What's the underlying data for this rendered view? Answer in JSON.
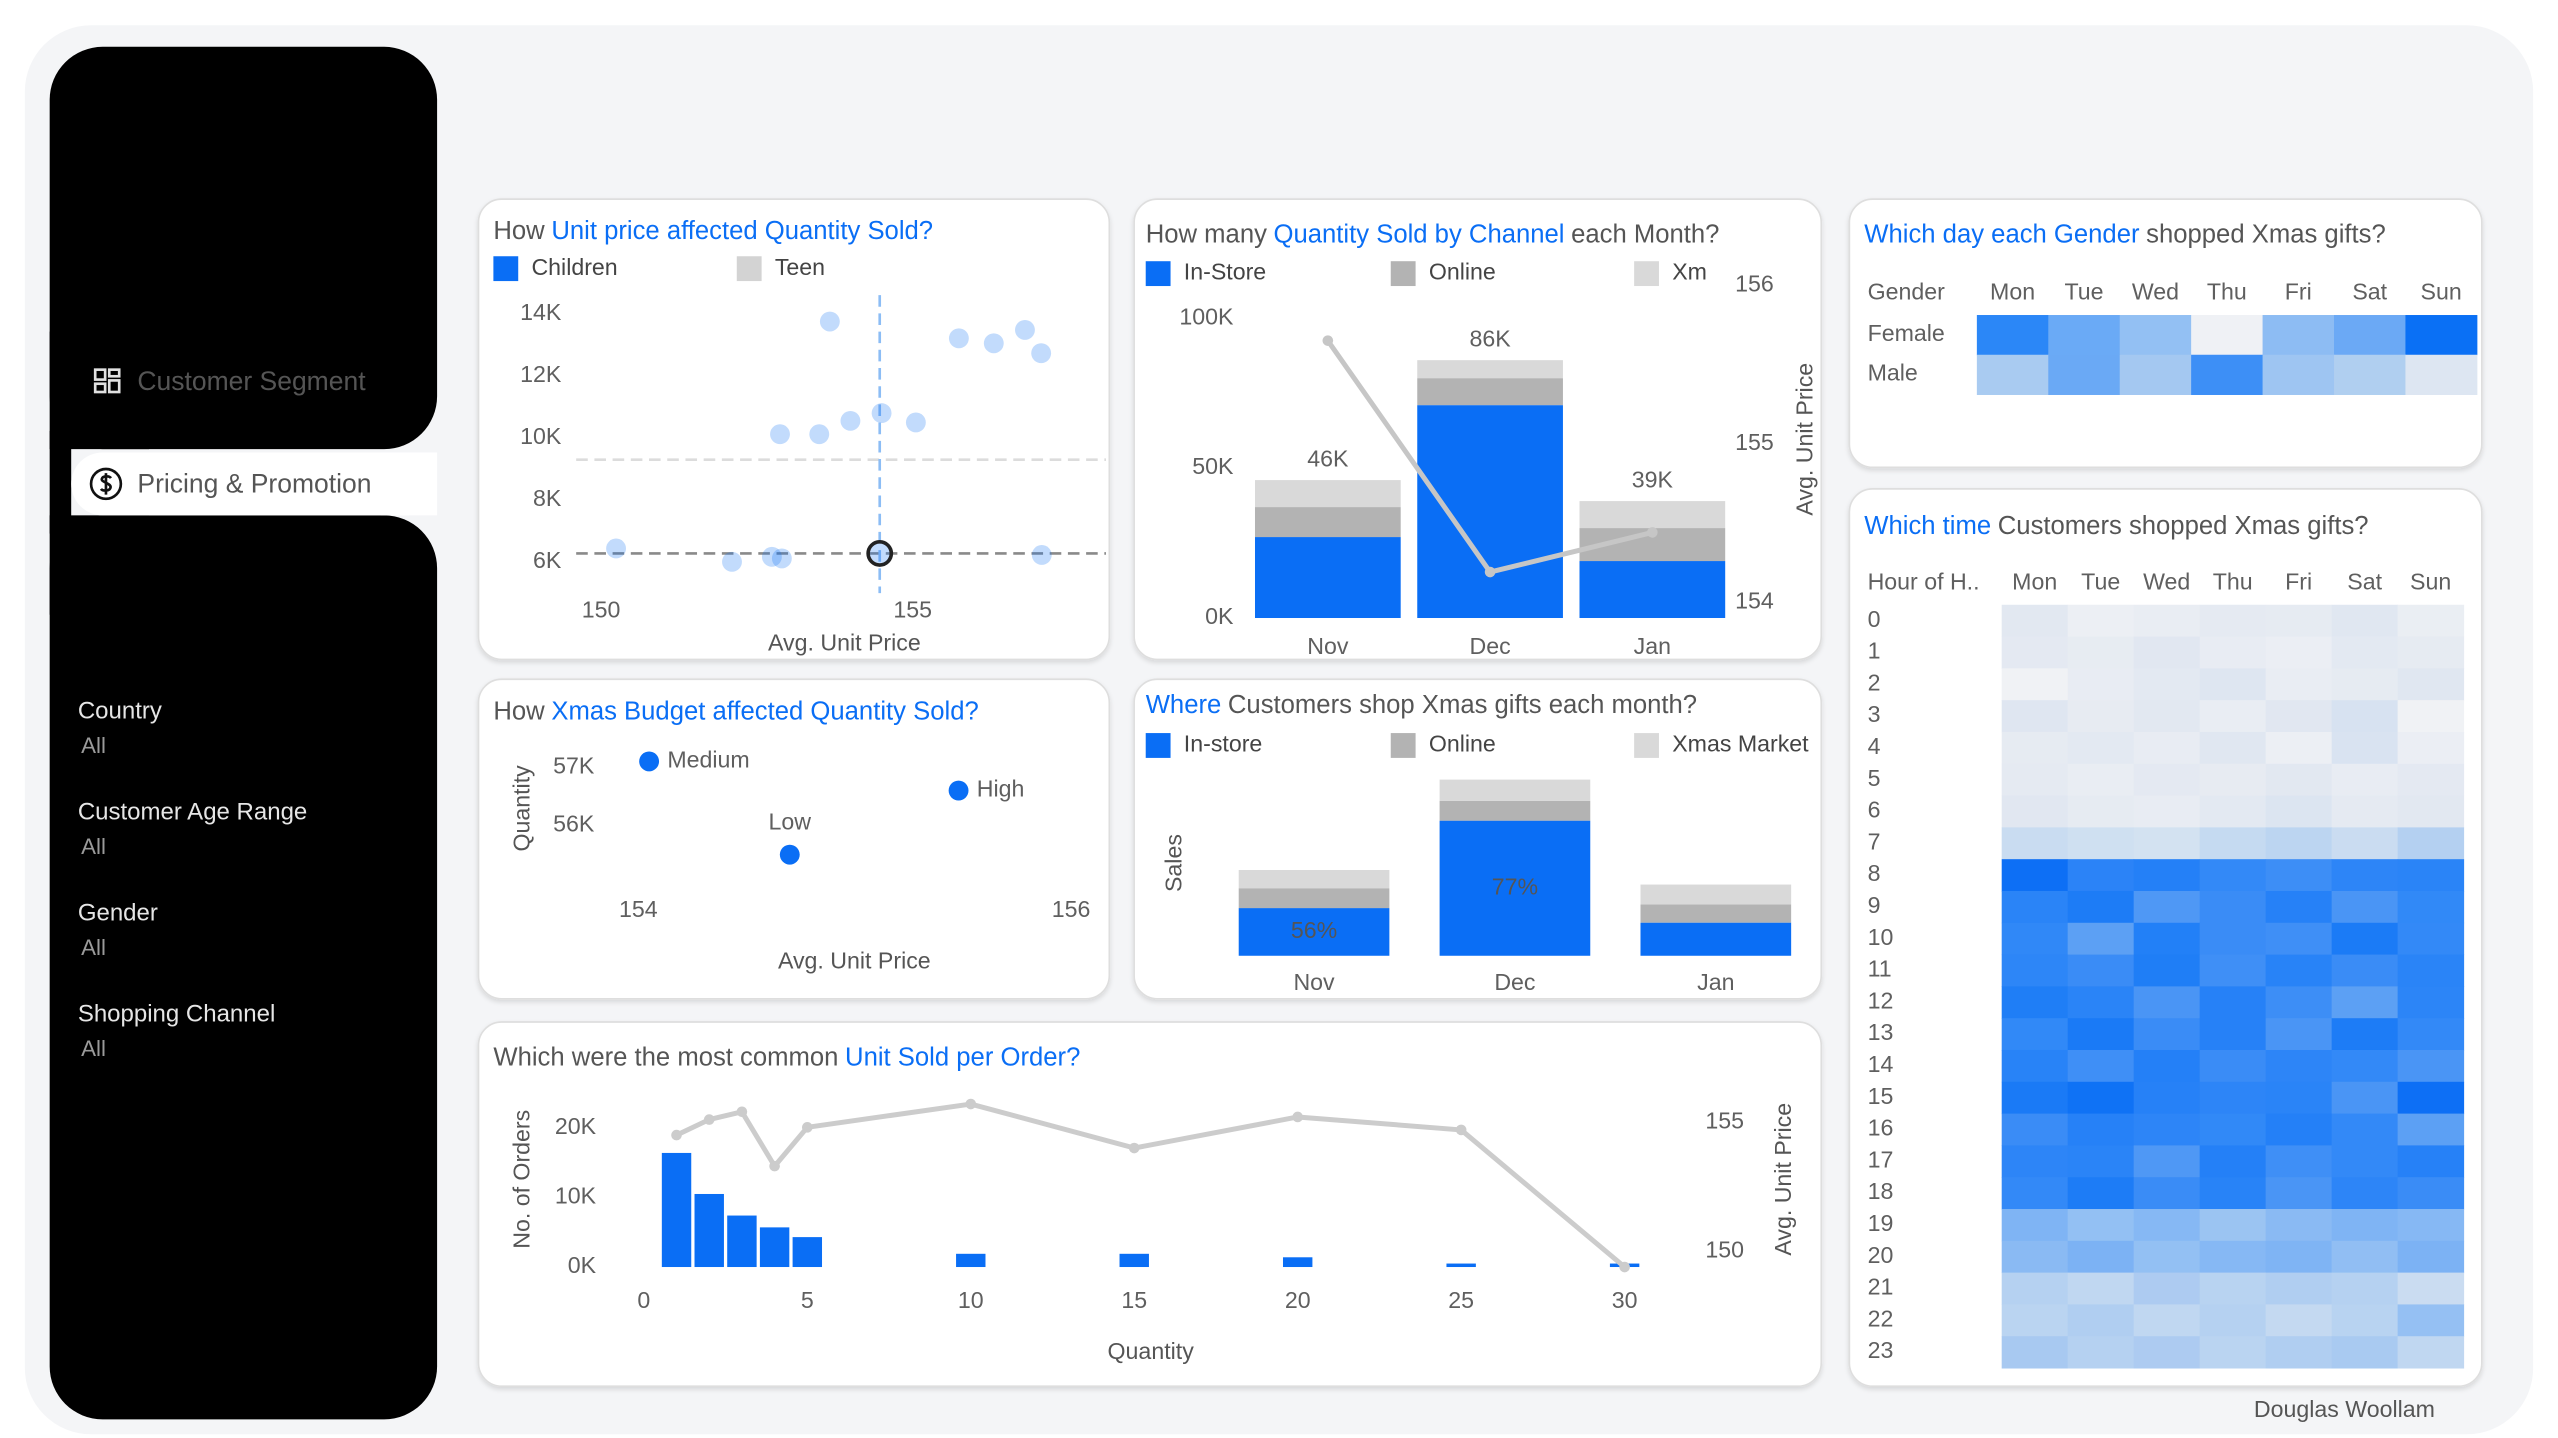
{
  "sidebar": {
    "nav": [
      "Customer Segment",
      "Pricing & Promotion"
    ],
    "active": 1,
    "filters": [
      {
        "label": "Country",
        "value": "All"
      },
      {
        "label": "Customer Age Range",
        "value": "All"
      },
      {
        "label": "Gender",
        "value": "All"
      },
      {
        "label": "Shopping Channel",
        "value": "All"
      }
    ]
  },
  "chart_data": [
    {
      "type": "scatter",
      "title": [
        {
          "text": "How",
          "highlight": false
        },
        {
          "text": "Unit price affected Quantity Sold?",
          "highlight": true
        }
      ],
      "xlabel": "Avg. Unit Price",
      "series": [
        {
          "name": "Children",
          "color": "#0a6ef5",
          "x": [
            153.67,
            155.74,
            156.3,
            156.8,
            157.06,
            152.87,
            153.5,
            154.0,
            154.5,
            155.05,
            150.24,
            152.1,
            152.74,
            152.9,
            154.47,
            157.07
          ],
          "y": [
            13750,
            13210,
            13050,
            13480,
            12730,
            10120,
            10120,
            10550,
            10800,
            10500,
            6440,
            6010,
            6170,
            6120,
            6280,
            6230
          ]
        },
        {
          "name": "Teen",
          "color": "#d3d3d3",
          "x": [],
          "y": []
        }
      ],
      "selected_point": 14,
      "dim_opacity": 0.25,
      "reference_lines": [
        {
          "axis": "y",
          "value": 9300,
          "color": "#dcdcdc"
        },
        {
          "axis": "y",
          "value": 6280,
          "color": "#8a8a8a"
        },
        {
          "axis": "x",
          "value": 154.47,
          "color": "#8cbdf5"
        }
      ],
      "xlim": [
        149.6,
        158.1
      ],
      "xticks": [
        150,
        155
      ],
      "ylim": [
        5000,
        14600
      ],
      "yticks": [
        {
          "value": 14000,
          "label": "14K"
        },
        {
          "value": 12000,
          "label": "12K"
        },
        {
          "value": 10000,
          "label": "10K"
        },
        {
          "value": 8000,
          "label": "8K"
        },
        {
          "value": 6000,
          "label": "6K"
        }
      ]
    },
    {
      "type": "bar",
      "title": [
        {
          "text": "How many",
          "highlight": false
        },
        {
          "text": "Quantity Sold by Channel",
          "highlight": true
        },
        {
          "text": "each Month?",
          "highlight": false
        }
      ],
      "categories": [
        "Nov",
        "Dec",
        "Jan"
      ],
      "stacked": true,
      "series": [
        {
          "name": "In-Store",
          "color": "#0a6ef5",
          "values": [
            27000,
            71000,
            19000
          ]
        },
        {
          "name": "Online",
          "color": "#b3b3b3",
          "values": [
            10000,
            9000,
            11000
          ]
        },
        {
          "name": "Xm",
          "color": "#d9d9d9",
          "values": [
            9000,
            6000,
            9000
          ]
        },
        {
          "color": "#c6c6c6",
          "axis": "y2",
          "values": [
            155.65,
            154.19,
            154.44
          ]
        }
      ],
      "totals": [
        46000,
        86000,
        39000
      ],
      "total_labels": [
        "46K",
        "86K",
        "39K"
      ],
      "y2label": "Avg. Unit Price",
      "ylim": [
        0,
        111000
      ],
      "yticks": [
        {
          "value": 100000,
          "label": "100K"
        },
        {
          "value": 50000,
          "label": "50K"
        },
        {
          "value": 0,
          "label": "0K"
        }
      ],
      "y2lim": [
        153.9,
        156
      ],
      "y2ticks": [
        156,
        155,
        154
      ]
    },
    {
      "type": "scatter",
      "title": [
        {
          "text": "How",
          "highlight": false
        },
        {
          "text": "Xmas Budget affected Quantity Sold?",
          "highlight": true
        }
      ],
      "xlabel": "Avg. Unit Price",
      "ylabel": "Quantity",
      "series": [
        {
          "color": "#0a6ef5",
          "labels": [
            "Medium",
            "High",
            "Low"
          ],
          "x": [
            154.05,
            155.48,
            154.7
          ],
          "y": [
            57100,
            56600,
            55500
          ]
        }
      ],
      "xlim": [
        153.69,
        156.1
      ],
      "xticks": [
        154,
        156
      ],
      "ylim": [
        55100,
        57430
      ],
      "yticks": [
        {
          "value": 57000,
          "label": "57K"
        },
        {
          "value": 56000,
          "label": "56K"
        }
      ]
    },
    {
      "type": "bar",
      "title": [
        {
          "text": "Where",
          "highlight": true
        },
        {
          "text": "Customers shop Xmas gifts each month?",
          "highlight": false
        }
      ],
      "categories": [
        "Nov",
        "Dec",
        "Jan"
      ],
      "stacked": true,
      "ylabel": "Sales",
      "series": [
        {
          "name": "In-store",
          "color": "#0a6ef5",
          "values": [
            3600000,
            10200000,
            2500000
          ]
        },
        {
          "name": "Online",
          "color": "#b3b3b3",
          "values": [
            1500000,
            1500000,
            1375000
          ]
        },
        {
          "name": "Xmas Market",
          "color": "#d9d9d9",
          "values": [
            1375000,
            1600000,
            1500000
          ]
        }
      ],
      "shares": [
        56,
        77,
        null
      ],
      "share_labels": [
        "56%",
        "77%",
        null
      ],
      "ylim": [
        0,
        14000000
      ]
    },
    {
      "type": "bar",
      "title": [
        {
          "text": "Which were the most common",
          "highlight": false
        },
        {
          "text": "Unit Sold per Order?",
          "highlight": true
        }
      ],
      "xlabel": "Quantity",
      "ylabel": "No. of Orders",
      "y2label": "Avg. Unit Price",
      "x": [
        1,
        2,
        3,
        4,
        5,
        10,
        15,
        20,
        25,
        30
      ],
      "series": [
        {
          "color": "#0a6ef5",
          "values": [
            16400,
            10500,
            7400,
            5700,
            4300,
            1900,
            1900,
            1400,
            500,
            500
          ]
        },
        {
          "color": "#cccccc",
          "axis": "y2",
          "values": [
            154.5,
            155.1,
            155.4,
            153.3,
            154.8,
            155.7,
            154.0,
            155.2,
            154.7,
            149.4
          ]
        }
      ],
      "xlim": [
        -0.5,
        31
      ],
      "xticks": [
        0,
        5,
        10,
        15,
        20,
        25,
        30
      ],
      "ylim": [
        0,
        23800
      ],
      "yticks": [
        {
          "value": 20000,
          "label": "20K"
        },
        {
          "value": 10000,
          "label": "10K"
        },
        {
          "value": 0,
          "label": "0K"
        }
      ],
      "y2lim": [
        149.4,
        155.8
      ],
      "y2ticks": [
        155,
        150
      ]
    },
    {
      "type": "heatmap",
      "title": [
        {
          "text": "Which day each Gender",
          "highlight": true
        },
        {
          "text": "shopped Xmas gifts?",
          "highlight": false
        }
      ],
      "row_header": "Gender",
      "columns": [
        "Mon",
        "Tue",
        "Wed",
        "Thu",
        "Fri",
        "Sat",
        "Sun"
      ],
      "rows": [
        "Female",
        "Male"
      ],
      "cell_colors": [
        [
          "#2b87f7",
          "#6aaaf6",
          "#93c0f3",
          "#eff1f5",
          "#8dbcf3",
          "#6ba9f5",
          "#0a70f5"
        ],
        [
          "#a9cbf1",
          "#6aa9f5",
          "#a4c8f1",
          "#3d8ff6",
          "#9ec5f2",
          "#b0cff0",
          "#dde6f2"
        ]
      ]
    },
    {
      "type": "heatmap",
      "title": [
        {
          "text": "Which time",
          "highlight": true
        },
        {
          "text": "Customers shopped Xmas gifts?",
          "highlight": false
        }
      ],
      "row_header": "Hour of H..",
      "columns": [
        "Mon",
        "Tue",
        "Wed",
        "Thu",
        "Fri",
        "Sat",
        "Sun"
      ],
      "rows": [
        0,
        1,
        2,
        3,
        4,
        5,
        6,
        7,
        8,
        9,
        10,
        11,
        12,
        13,
        14,
        15,
        16,
        17,
        18,
        19,
        20,
        21,
        22,
        23
      ],
      "cell_colors": [
        [
          "#e2e8f1",
          "#eceff4",
          "#e9edf3",
          "#e5eaf2",
          "#e6ebf2",
          "#e0e7f1",
          "#eaeef3"
        ],
        [
          "#e4e9f2",
          "#e7ecf2",
          "#e1e7f1",
          "#e8ecf3",
          "#ebeef4",
          "#e3e9f2",
          "#e6ebf2"
        ],
        [
          "#f0f2f5",
          "#e8ecf3",
          "#e3e9f2",
          "#dee6f1",
          "#e9edf3",
          "#e6ebf2",
          "#e0e7f1"
        ],
        [
          "#dfe6f1",
          "#e7ebf2",
          "#e2e8f1",
          "#e9edf3",
          "#e1e7f1",
          "#d7e2f1",
          "#f0f2f5"
        ],
        [
          "#e6ebf2",
          "#e3e9f2",
          "#e8ecf3",
          "#e0e7f1",
          "#eceff4",
          "#d9e3f1",
          "#ebeef4"
        ],
        [
          "#e5eaf2",
          "#e9edf3",
          "#e4e9f2",
          "#e7ebf2",
          "#e2e8f1",
          "#e8ecf3",
          "#e4e9f2"
        ],
        [
          "#e1e7f1",
          "#e6ebf2",
          "#e8ecf3",
          "#e3e9f2",
          "#dce5f1",
          "#e5eaf2",
          "#e2e8f1"
        ],
        [
          "#c9dcf1",
          "#cfe0f1",
          "#d3e2f1",
          "#c5daf1",
          "#bcd5f1",
          "#cadcf1",
          "#b4d0f1"
        ],
        [
          "#0d6ff5",
          "#2b83f7",
          "#2480f7",
          "#3389f7",
          "#3d8ef6",
          "#2d85f7",
          "#2a84f7"
        ],
        [
          "#2a84f7",
          "#1d7cf6",
          "#4f98f5",
          "#3a8cf6",
          "#2681f7",
          "#4a95f5",
          "#3189f7"
        ],
        [
          "#3088f7",
          "#5ca0f4",
          "#2280f7",
          "#3a8cf6",
          "#3f8ff6",
          "#1b7bf6",
          "#3389f7"
        ],
        [
          "#2d86f7",
          "#3a8cf6",
          "#1f7ef6",
          "#3f8ff6",
          "#2883f7",
          "#3a8cf6",
          "#2a84f7"
        ],
        [
          "#1f7ef6",
          "#2a84f7",
          "#4a95f5",
          "#2681f7",
          "#3d8ef6",
          "#5ca0f4",
          "#2c85f7"
        ],
        [
          "#3189f7",
          "#1a7af6",
          "#3a8cf6",
          "#2681f7",
          "#4a95f5",
          "#1d7cf6",
          "#3389f7"
        ],
        [
          "#2883f7",
          "#3f8ff6",
          "#2480f7",
          "#3a8cf6",
          "#2d85f7",
          "#3389f7",
          "#4a95f5"
        ],
        [
          "#1a7af6",
          "#0f72f5",
          "#2681f7",
          "#2d85f7",
          "#2a84f7",
          "#4a95f5",
          "#0d6ff5"
        ],
        [
          "#3a8cf6",
          "#2681f7",
          "#2d85f7",
          "#3189f7",
          "#2480f7",
          "#3389f7",
          "#5ca0f4"
        ],
        [
          "#2d85f7",
          "#2a84f7",
          "#4f98f5",
          "#2480f7",
          "#3f8ff6",
          "#3389f7",
          "#2681f7"
        ],
        [
          "#3389f7",
          "#1d7cf6",
          "#3a8cf6",
          "#2883f7",
          "#4a95f5",
          "#2d85f7",
          "#3a8cf6"
        ],
        [
          "#7fb4f4",
          "#93c0f3",
          "#86b8f4",
          "#9bc4f2",
          "#8abaf3",
          "#7fb4f4",
          "#86b8f4"
        ],
        [
          "#8abaf3",
          "#7cb2f4",
          "#93c0f3",
          "#86b8f4",
          "#7fb4f4",
          "#91bef3",
          "#7cb2f4"
        ],
        [
          "#b5d1f1",
          "#c0d7f1",
          "#adcbf1",
          "#b8d3f1",
          "#b0cef1",
          "#b5d1f1",
          "#cadcf1"
        ],
        [
          "#bad4f1",
          "#b0cef1",
          "#c0d7f1",
          "#b5d1f1",
          "#c4d9f1",
          "#b8d3f1",
          "#95c0f3"
        ],
        [
          "#a8c9f1",
          "#b5d1f1",
          "#adcbf1",
          "#bad4f1",
          "#b0cef1",
          "#a9caf1",
          "#c0d7f1"
        ]
      ]
    }
  ],
  "footer": "Douglas Woollam"
}
